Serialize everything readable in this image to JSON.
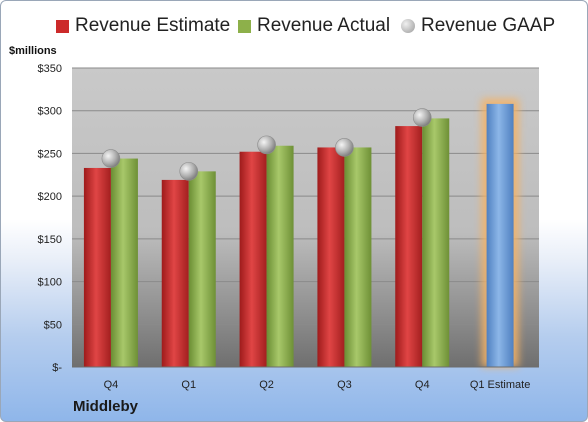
{
  "chart_data": {
    "type": "bar",
    "ylabel": "$millions",
    "company": "Middleby",
    "categories": [
      "Q4",
      "Q1",
      "Q2",
      "Q3",
      "Q4",
      "Q1 Estimate"
    ],
    "ylim": [
      0,
      350
    ],
    "yticks": [
      0,
      50,
      100,
      150,
      200,
      250,
      300,
      350
    ],
    "ytick_labels": [
      "$-",
      "$50",
      "$100",
      "$150",
      "$200",
      "$250",
      "$300",
      "$350"
    ],
    "grid": true,
    "legend_position": "top",
    "series": [
      {
        "name": "Revenue Estimate",
        "kind": "bar",
        "color": "#cc2a2a",
        "values": [
          233,
          219,
          252,
          257,
          282,
          null
        ]
      },
      {
        "name": "Revenue Actual",
        "kind": "bar",
        "color": "#8db04a",
        "values": [
          244,
          229,
          259,
          257,
          291,
          null
        ]
      },
      {
        "name": "Revenue GAAP",
        "kind": "marker",
        "color": "#b8b8b8",
        "values": [
          244,
          229,
          260,
          257,
          292,
          null
        ]
      },
      {
        "name": "",
        "kind": "bar",
        "color": "#6f9fd8",
        "highlight": "#f4b266",
        "values": [
          null,
          null,
          null,
          null,
          null,
          308
        ]
      }
    ]
  }
}
